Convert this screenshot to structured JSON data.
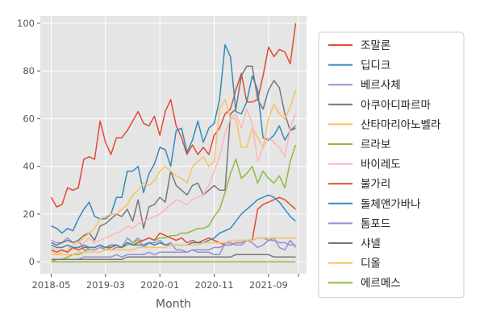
{
  "chart_data": {
    "type": "line",
    "xlabel": "Month",
    "ylabel": "",
    "ylim": [
      -5,
      103
    ],
    "xlim": [
      -2,
      47
    ],
    "x_ticks": [
      {
        "pos": 0,
        "label": "2018-05"
      },
      {
        "pos": 10,
        "label": "2019-03"
      },
      {
        "pos": 20,
        "label": "2020-01"
      },
      {
        "pos": 30,
        "label": "2020-11"
      },
      {
        "pos": 40,
        "label": "2021-09"
      },
      {
        "pos": 50,
        "label": ""
      }
    ],
    "y_ticks": [
      {
        "value": 0,
        "label": "0"
      },
      {
        "value": 20,
        "label": "20"
      },
      {
        "value": 40,
        "label": "40"
      },
      {
        "value": 60,
        "label": "60"
      },
      {
        "value": 80,
        "label": "80"
      },
      {
        "value": 100,
        "label": "100"
      }
    ],
    "grid": true,
    "legend_position": "right",
    "series": [
      {
        "name": "조말론",
        "color": "#E24A33",
        "values": [
          27,
          23,
          24,
          31,
          30,
          31,
          43,
          44,
          43,
          59,
          50,
          45,
          52,
          52,
          55,
          59,
          63,
          58,
          57,
          61,
          53,
          63,
          68,
          57,
          52,
          45,
          49,
          45,
          48,
          45,
          53,
          56,
          62,
          64,
          72,
          79,
          67,
          67,
          68,
          78,
          90,
          86,
          89,
          88,
          83,
          100
        ]
      },
      {
        "name": "딥디크",
        "color": "#348ABD",
        "values": [
          15,
          14,
          12,
          14,
          13,
          18,
          22,
          25,
          19,
          18,
          18,
          20,
          27,
          27,
          38,
          38,
          40,
          29,
          37,
          41,
          48,
          47,
          40,
          55,
          56,
          46,
          51,
          59,
          50,
          56,
          58,
          68,
          91,
          86,
          63,
          62,
          67,
          78,
          72,
          52,
          51,
          53,
          57,
          51,
          55,
          57
        ]
      },
      {
        "name": "베르사체",
        "color": "#988ED5",
        "values": [
          9,
          8,
          8,
          10,
          8,
          9,
          5,
          5,
          5,
          6,
          5,
          5,
          6,
          6,
          10,
          8,
          10,
          6,
          8,
          8,
          9,
          7,
          8,
          5,
          5,
          4,
          5,
          4,
          4,
          4,
          3,
          3,
          8,
          8,
          7,
          7,
          9,
          8,
          6,
          7,
          9,
          10,
          6,
          5,
          9,
          6
        ]
      },
      {
        "name": "아쿠아디파르마",
        "color": "#777777",
        "values": [
          8,
          7,
          8,
          9,
          8,
          9,
          11,
          12,
          9,
          15,
          16,
          18,
          20,
          19,
          22,
          17,
          26,
          14,
          23,
          24,
          27,
          25,
          38,
          32,
          30,
          28,
          32,
          33,
          28,
          30,
          32,
          30,
          30,
          62,
          64,
          78,
          82,
          82,
          68,
          64,
          72,
          76,
          73,
          62,
          55,
          56
        ]
      },
      {
        "name": "산타마리아노벨라",
        "color": "#FBC15E",
        "values": [
          4,
          3,
          4,
          5,
          7,
          8,
          10,
          12,
          14,
          18,
          19,
          20,
          20,
          22,
          24,
          28,
          30,
          33,
          32,
          34,
          38,
          40,
          38,
          36,
          35,
          33,
          40,
          42,
          44,
          40,
          42,
          64,
          68,
          60,
          60,
          48,
          48,
          56,
          52,
          48,
          60,
          66,
          62,
          60,
          65,
          72
        ]
      },
      {
        "name": "르라보",
        "color": "#8EBA42",
        "values": [
          0,
          1,
          1,
          2,
          3,
          3,
          4,
          6,
          6,
          7,
          5,
          6,
          7,
          6,
          7,
          8,
          9,
          9,
          10,
          9,
          10,
          10,
          11,
          11,
          12,
          12,
          13,
          14,
          14,
          15,
          19,
          22,
          29,
          37,
          43,
          35,
          37,
          40,
          33,
          38,
          35,
          33,
          36,
          31,
          42,
          49
        ]
      },
      {
        "name": "바이레도",
        "color": "#FFB5B8",
        "values": [
          6,
          5,
          6,
          7,
          5,
          6,
          8,
          10,
          8,
          9,
          10,
          11,
          12,
          13,
          15,
          14,
          16,
          17,
          18,
          19,
          20,
          22,
          24,
          26,
          25,
          24,
          26,
          27,
          28,
          32,
          38,
          44,
          54,
          60,
          62,
          56,
          64,
          58,
          42,
          48,
          52,
          50,
          48,
          44,
          56,
          62
        ]
      },
      {
        "name": "불가리",
        "color": "#E24A33",
        "values": [
          5,
          4,
          5,
          4,
          6,
          5,
          6,
          6,
          6,
          7,
          6,
          6,
          7,
          6,
          8,
          7,
          8,
          9,
          10,
          9,
          12,
          11,
          10,
          9,
          10,
          8,
          9,
          8,
          9,
          10,
          9,
          8,
          7,
          7,
          8,
          8,
          9,
          9,
          22,
          24,
          25,
          26,
          27,
          26,
          24,
          22
        ]
      },
      {
        "name": "돌체앤가바나",
        "color": "#348ABD",
        "values": [
          7,
          6,
          6,
          7,
          6,
          6,
          7,
          6,
          6,
          7,
          6,
          7,
          7,
          6,
          8,
          7,
          7,
          7,
          8,
          7,
          8,
          7,
          7,
          7,
          7,
          7,
          8,
          8,
          8,
          9,
          10,
          12,
          13,
          14,
          17,
          20,
          22,
          24,
          26,
          27,
          28,
          27,
          25,
          22,
          19,
          17
        ]
      },
      {
        "name": "톰포드",
        "color": "#988ED5",
        "values": [
          1,
          1,
          1,
          1,
          1,
          1,
          2,
          2,
          2,
          2,
          2,
          2,
          3,
          2,
          3,
          3,
          3,
          3,
          4,
          3,
          4,
          4,
          4,
          4,
          4,
          4,
          5,
          5,
          5,
          5,
          6,
          6,
          7,
          7,
          8,
          8,
          9,
          9,
          10,
          10,
          9,
          9,
          8,
          8,
          7,
          7
        ]
      },
      {
        "name": "샤넬",
        "color": "#777777",
        "values": [
          1,
          1,
          1,
          1,
          1,
          1,
          1,
          1,
          1,
          1,
          1,
          1,
          1,
          1,
          2,
          2,
          2,
          2,
          2,
          2,
          2,
          2,
          2,
          2,
          2,
          2,
          2,
          2,
          2,
          2,
          2,
          2,
          2,
          2,
          3,
          3,
          3,
          3,
          3,
          3,
          3,
          2,
          2,
          2,
          2,
          2
        ]
      },
      {
        "name": "디올",
        "color": "#FBC15E",
        "values": [
          3,
          3,
          3,
          3,
          3,
          4,
          4,
          4,
          4,
          4,
          5,
          5,
          5,
          5,
          5,
          5,
          6,
          6,
          6,
          6,
          6,
          6,
          7,
          7,
          7,
          7,
          7,
          7,
          8,
          8,
          8,
          8,
          8,
          9,
          9,
          9,
          9,
          9,
          10,
          10,
          10,
          10,
          10,
          10,
          10,
          10
        ]
      },
      {
        "name": "에르메스",
        "color": "#8EBA42",
        "values": [
          0,
          0,
          0,
          0,
          0,
          0,
          0,
          0,
          0,
          0,
          0,
          0,
          0,
          0,
          0,
          0,
          0,
          0,
          0,
          0,
          0,
          0,
          0,
          0,
          0,
          0,
          0,
          0,
          0,
          0,
          0,
          0,
          0,
          0,
          0,
          0,
          0,
          0,
          0,
          0,
          0,
          0,
          0,
          0,
          0,
          0
        ]
      }
    ]
  }
}
